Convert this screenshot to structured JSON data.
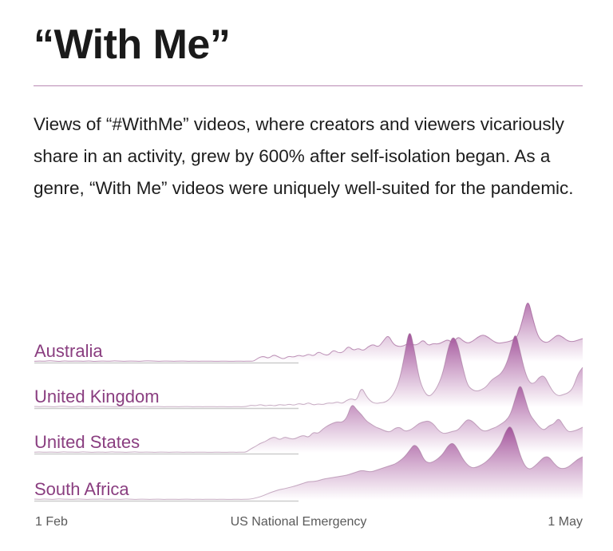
{
  "title": "“With Me”",
  "description": "Views of “#WithMe” videos, where creators and viewers vicariously share in an activity, grew by 600% after self-isolation began. As a genre, “With Me” videos were uniquely well-suited for the pandemic.",
  "colors": {
    "accent": "#8a3e80",
    "fill_top": "#a2519a",
    "rule": "#b98ab3",
    "baseline": "#cccccc"
  },
  "chart_data": {
    "type": "area",
    "subtype": "ridgeline",
    "x_ticks": [
      "1 Feb",
      "US National Emergency",
      "1 May"
    ],
    "series": [
      {
        "name": "Australia",
        "values": [
          0.3,
          0.5,
          0.3,
          0.7,
          0.4,
          0.2,
          0.6,
          0.3,
          0.5,
          0.4,
          0.3,
          0.6,
          0.2,
          0.4,
          0.5,
          0.3,
          0.6,
          0.4,
          0.3,
          0.5,
          0.4,
          0.3,
          0.5,
          0.6,
          0.4,
          0.3,
          0.5,
          0.4,
          0.3,
          0.4,
          0.5,
          0.3,
          0.4,
          0.3,
          0.4,
          0.4,
          0.3,
          0.3,
          0.4,
          0.3,
          0.3,
          0.4,
          0.3,
          0.4,
          0.3,
          2.6,
          3.5,
          2.0,
          4.5,
          3.0,
          1.6,
          3.6,
          2.8,
          4.2,
          3.2,
          5.0,
          3.4,
          6.5,
          4.5,
          4.0,
          7.5,
          5.5,
          6.0,
          10.0,
          7.0,
          8.5,
          6.8,
          9.5,
          11.0,
          9.0,
          13.0,
          17.0,
          11.0,
          9.5,
          9.8,
          11.5,
          10.5,
          10.8,
          14.0,
          10.0,
          11.5,
          11.0,
          12.5,
          14.0,
          11.5,
          16.0,
          13.0,
          11.5,
          13.0,
          15.5,
          17.0,
          15.5,
          13.0,
          11.5,
          12.0,
          12.5,
          13.5,
          16.0,
          27.0,
          40.0,
          27.0,
          16.0,
          12.5,
          12.0,
          14.5,
          17.0,
          15.5,
          13.0,
          12.5,
          13.5,
          14.5
        ]
      },
      {
        "name": "United Kingdom",
        "values": [
          0.5,
          0.3,
          0.6,
          0.4,
          0.3,
          0.5,
          0.7,
          0.4,
          0.3,
          0.6,
          0.4,
          0.2,
          0.5,
          0.3,
          0.6,
          0.4,
          0.5,
          0.3,
          0.6,
          0.4,
          0.3,
          0.5,
          0.4,
          0.6,
          0.3,
          0.4,
          0.5,
          0.3,
          0.4,
          0.4,
          0.3,
          0.4,
          0.5,
          0.3,
          0.4,
          0.3,
          0.4,
          0.4,
          0.3,
          0.4,
          0.3,
          0.3,
          0.4,
          0.3,
          0.4,
          1.3,
          0.9,
          1.8,
          0.8,
          1.5,
          0.8,
          1.8,
          1.2,
          2.0,
          1.2,
          2.5,
          1.5,
          3.0,
          1.3,
          2.2,
          1.6,
          2.8,
          2.4,
          3.5,
          2.2,
          4.5,
          5.5,
          4.0,
          13.0,
          7.0,
          3.5,
          2.3,
          2.8,
          3.2,
          5.5,
          10.0,
          18.0,
          33.0,
          50.0,
          36.0,
          18.0,
          10.0,
          6.5,
          9.0,
          14.0,
          22.0,
          37.0,
          45.0,
          40.0,
          26.0,
          14.0,
          11.0,
          10.0,
          11.0,
          13.0,
          17.0,
          19.0,
          21.0,
          26.0,
          35.0,
          48.0,
          35.0,
          22.0,
          15.0,
          15.0,
          19.0,
          20.0,
          14.0,
          9.0,
          7.0,
          8.0,
          9.0,
          12.0,
          21.0,
          25.0
        ]
      },
      {
        "name": "United States",
        "values": [
          0.4,
          0.6,
          0.3,
          0.5,
          0.4,
          0.3,
          0.6,
          0.4,
          0.5,
          0.3,
          0.6,
          0.4,
          0.3,
          0.5,
          0.4,
          0.3,
          0.6,
          0.4,
          0.5,
          0.3,
          0.4,
          0.6,
          0.3,
          0.5,
          0.4,
          0.3,
          0.5,
          0.4,
          0.3,
          0.4,
          0.5,
          0.3,
          0.4,
          0.3,
          0.4,
          0.4,
          0.3,
          0.3,
          0.4,
          0.3,
          0.3,
          0.4,
          0.3,
          0.4,
          0.3,
          2.5,
          4.0,
          6.0,
          7.0,
          9.0,
          10.0,
          8.0,
          10.0,
          9.0,
          8.5,
          10.0,
          11.0,
          9.5,
          13.0,
          12.0,
          15.0,
          17.0,
          18.5,
          19.5,
          19.0,
          22.0,
          31.0,
          27.0,
          24.0,
          20.0,
          18.0,
          16.0,
          15.0,
          13.5,
          13.0,
          15.5,
          16.0,
          13.5,
          14.0,
          16.0,
          18.5,
          19.5,
          20.0,
          18.0,
          14.0,
          12.0,
          12.5,
          13.5,
          14.0,
          17.5,
          21.0,
          20.0,
          17.0,
          14.0,
          13.5,
          15.0,
          16.0,
          18.0,
          20.0,
          24.0,
          34.0,
          44.0,
          34.0,
          24.0,
          20.0,
          16.0,
          14.0,
          17.0,
          18.0,
          22.0,
          17.0,
          13.0,
          13.5,
          14.5,
          16.0
        ]
      },
      {
        "name": "South Africa",
        "values": [
          0.5,
          0.3,
          0.6,
          0.4,
          0.3,
          0.7,
          0.4,
          0.5,
          0.3,
          0.6,
          0.4,
          0.3,
          0.5,
          0.4,
          0.6,
          0.3,
          0.5,
          0.4,
          0.3,
          0.6,
          0.4,
          0.3,
          0.5,
          0.4,
          0.3,
          0.4,
          0.5,
          0.3,
          0.4,
          0.4,
          0.3,
          0.4,
          0.5,
          0.3,
          0.4,
          0.3,
          0.4,
          0.4,
          0.3,
          0.4,
          0.3,
          0.3,
          0.4,
          0.3,
          0.4,
          0.5,
          1.2,
          2.0,
          3.2,
          4.5,
          5.5,
          6.5,
          7.0,
          7.8,
          8.5,
          9.5,
          10.5,
          11.5,
          11.5,
          12.0,
          13.0,
          13.5,
          14.0,
          14.5,
          15.0,
          15.5,
          16.5,
          17.5,
          18.5,
          18.0,
          17.5,
          18.5,
          19.5,
          20.5,
          21.5,
          22.5,
          24.5,
          27.0,
          31.0,
          35.0,
          32.0,
          25.0,
          23.0,
          24.0,
          26.0,
          29.0,
          34.0,
          36.0,
          32.0,
          26.0,
          22.0,
          20.0,
          20.5,
          22.0,
          24.0,
          27.0,
          31.0,
          35.0,
          43.0,
          47.0,
          39.0,
          28.0,
          21.0,
          19.0,
          21.0,
          24.0,
          27.0,
          27.0,
          23.0,
          20.0,
          19.5,
          20.5,
          23.0,
          25.5,
          27.0
        ]
      }
    ]
  }
}
